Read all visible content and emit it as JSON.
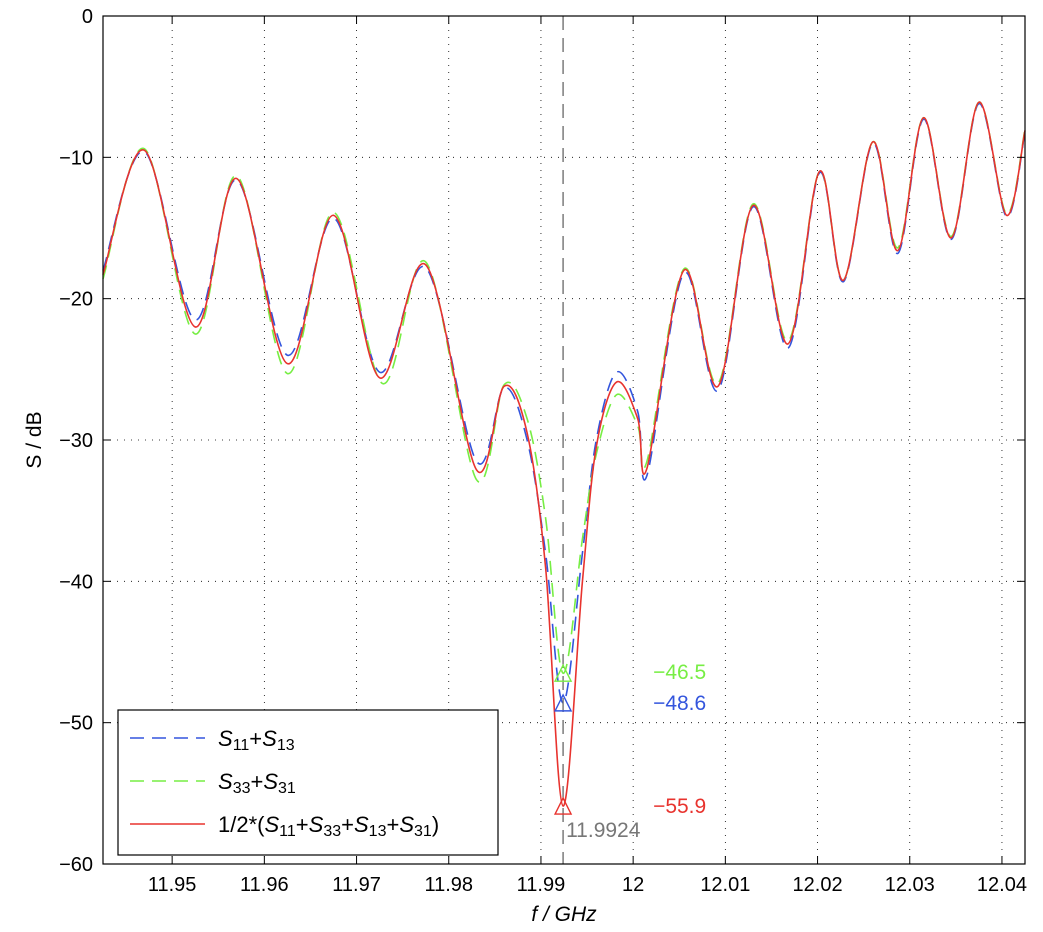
{
  "chart_data": {
    "type": "line",
    "xlabel": "f / GHz",
    "ylabel": "S / dB",
    "xlim": [
      11.9425,
      12.0425
    ],
    "ylim": [
      -60,
      0
    ],
    "xticks": [
      "11.95",
      "11.96",
      "11.97",
      "11.98",
      "11.99",
      "12",
      "12.01",
      "12.02",
      "12.03",
      "12.04"
    ],
    "yticks": [
      "0",
      "−10",
      "−20",
      "−30",
      "−40",
      "−50",
      "−60"
    ],
    "grid": true,
    "legend_position": "bottom-left",
    "legend": {
      "s1": {
        "main": "S",
        "sub1": "11",
        "plus": "+",
        "main2": "S",
        "sub2": "13"
      },
      "s2": {
        "main": "S",
        "sub1": "33",
        "plus": "+",
        "main2": "S",
        "sub2": "31"
      },
      "s3": {
        "prefix": "1/2*(",
        "a": "S",
        "a_sub": "11",
        "b": "S",
        "b_sub": "33",
        "c": "S",
        "c_sub": "13",
        "d": "S",
        "d_sub": "31",
        "plus": "+",
        "suffix": ")"
      }
    },
    "marker_x": 11.9924,
    "annotations": {
      "freq": "11.9924",
      "green_value": "−46.5",
      "blue_value": "−48.6",
      "red_value": "−55.9"
    },
    "colors": {
      "s1": "#3355dd",
      "s2": "#77ee44",
      "s3": "#e8332e",
      "marker_line": "#666666",
      "freq_text": "#777777"
    },
    "series": [
      {
        "style": "dashed",
        "color": "#3355dd",
        "points": [
          [
            11.9425,
            -18.0
          ],
          [
            11.947,
            -9.6
          ],
          [
            11.9525,
            -21.5
          ],
          [
            11.957,
            -11.6
          ],
          [
            11.9625,
            -24.0
          ],
          [
            11.9675,
            -14.3
          ],
          [
            11.9725,
            -25.2
          ],
          [
            11.9775,
            -17.8
          ],
          [
            11.983,
            -31.5
          ],
          [
            11.986,
            -26.3
          ],
          [
            11.9885,
            -30.0
          ],
          [
            11.9905,
            -38.0
          ],
          [
            11.9924,
            -48.6
          ],
          [
            11.9945,
            -38.0
          ],
          [
            11.996,
            -30.0
          ],
          [
            11.9982,
            -25.2
          ],
          [
            12.0005,
            -28.0
          ],
          [
            12.0015,
            -32.5
          ],
          [
            12.0055,
            -18.2
          ],
          [
            12.0092,
            -26.5
          ],
          [
            12.013,
            -13.5
          ],
          [
            12.0168,
            -23.5
          ],
          [
            12.0202,
            -11.1
          ],
          [
            12.0228,
            -18.8
          ],
          [
            12.026,
            -9.0
          ],
          [
            12.0287,
            -16.8
          ],
          [
            12.0315,
            -7.3
          ],
          [
            12.0345,
            -15.8
          ],
          [
            12.0375,
            -6.2
          ],
          [
            12.0405,
            -14.2
          ],
          [
            12.0425,
            -8.2
          ]
        ]
      },
      {
        "style": "dashed",
        "color": "#77ee44",
        "points": [
          [
            11.9425,
            -18.6
          ],
          [
            11.947,
            -9.4
          ],
          [
            11.9525,
            -22.5
          ],
          [
            11.957,
            -11.3
          ],
          [
            11.9625,
            -25.3
          ],
          [
            11.9675,
            -13.9
          ],
          [
            11.9728,
            -26.0
          ],
          [
            11.9775,
            -17.4
          ],
          [
            11.983,
            -32.8
          ],
          [
            11.986,
            -26.1
          ],
          [
            11.9885,
            -28.5
          ],
          [
            11.9905,
            -35.5
          ],
          [
            11.9924,
            -46.5
          ],
          [
            11.9945,
            -37.0
          ],
          [
            11.996,
            -31.0
          ],
          [
            11.9982,
            -26.8
          ],
          [
            12.0005,
            -29.0
          ],
          [
            12.0015,
            -31.5
          ],
          [
            12.0055,
            -17.9
          ],
          [
            12.0092,
            -26.0
          ],
          [
            12.013,
            -13.3
          ],
          [
            12.0168,
            -23.0
          ],
          [
            12.0202,
            -11.0
          ],
          [
            12.0228,
            -18.7
          ],
          [
            12.026,
            -8.9
          ],
          [
            12.0287,
            -16.4
          ],
          [
            12.0315,
            -7.2
          ],
          [
            12.0345,
            -15.6
          ],
          [
            12.0375,
            -6.1
          ],
          [
            12.0405,
            -14.0
          ],
          [
            12.0425,
            -8.0
          ]
        ]
      },
      {
        "style": "solid",
        "color": "#e8332e",
        "points": [
          [
            11.9425,
            -18.3
          ],
          [
            11.947,
            -9.5
          ],
          [
            11.9525,
            -22.0
          ],
          [
            11.957,
            -11.5
          ],
          [
            11.9625,
            -24.6
          ],
          [
            11.9675,
            -14.1
          ],
          [
            11.9725,
            -25.6
          ],
          [
            11.9775,
            -17.6
          ],
          [
            11.983,
            -32.1
          ],
          [
            11.986,
            -26.2
          ],
          [
            11.9885,
            -29.5
          ],
          [
            11.9905,
            -39.0
          ],
          [
            11.9924,
            -55.9
          ],
          [
            11.9945,
            -40.0
          ],
          [
            11.996,
            -30.5
          ],
          [
            11.9982,
            -25.9
          ],
          [
            12.0005,
            -28.5
          ],
          [
            12.0015,
            -32.0
          ],
          [
            12.0055,
            -18.0
          ],
          [
            12.0092,
            -26.2
          ],
          [
            12.013,
            -13.4
          ],
          [
            12.0168,
            -23.2
          ],
          [
            12.0202,
            -11.0
          ],
          [
            12.0228,
            -18.7
          ],
          [
            12.026,
            -8.9
          ],
          [
            12.0287,
            -16.6
          ],
          [
            12.0315,
            -7.2
          ],
          [
            12.0345,
            -15.7
          ],
          [
            12.0375,
            -6.1
          ],
          [
            12.0405,
            -14.1
          ],
          [
            12.0425,
            -8.1
          ]
        ]
      }
    ]
  }
}
